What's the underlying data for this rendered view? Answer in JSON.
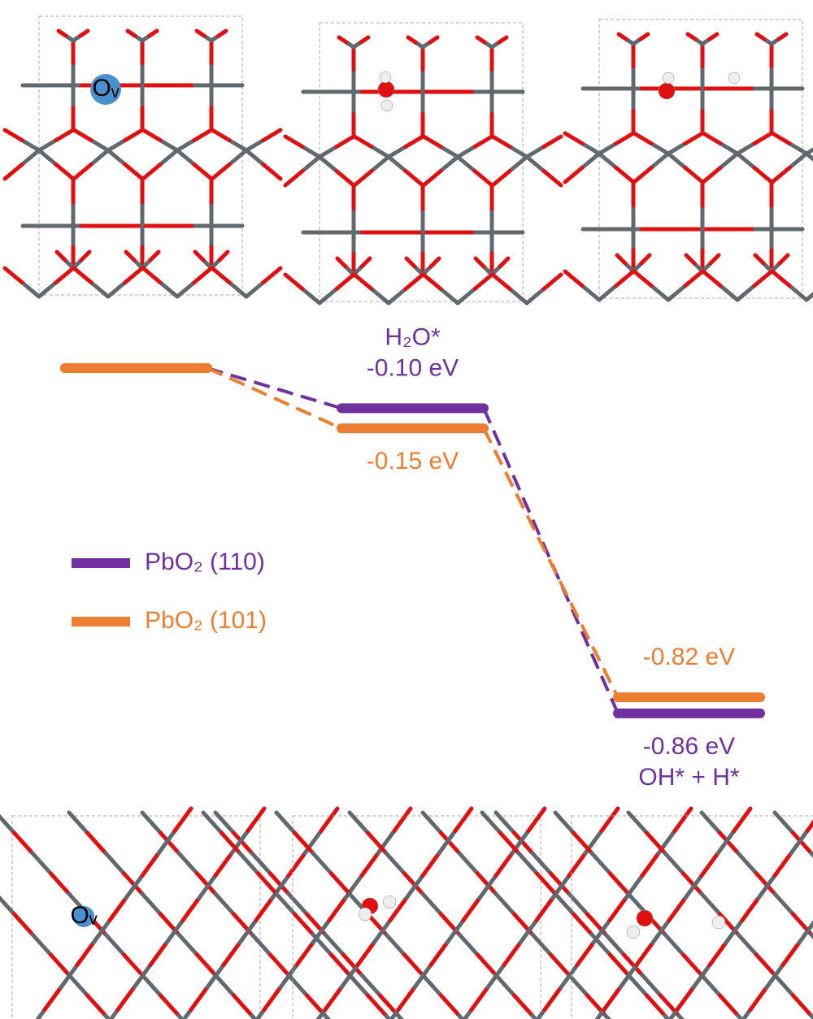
{
  "chart_data": {
    "type": "step",
    "categories": [
      null,
      "H₂O*",
      "OH* + H*"
    ],
    "series": [
      {
        "name": "PbO₂ (110)",
        "color": "#7030a0",
        "values": [
          0,
          -0.1,
          -0.86
        ],
        "value_labels": [
          null,
          "-0.10 eV",
          "-0.86 eV"
        ]
      },
      {
        "name": "PbO₂ (101)",
        "color": "#ed7d31",
        "values": [
          0,
          -0.15,
          -0.82
        ],
        "value_labels": [
          null,
          "-0.15 eV",
          "-0.82 eV"
        ]
      }
    ],
    "vacancy_label": "Oᵥ"
  }
}
